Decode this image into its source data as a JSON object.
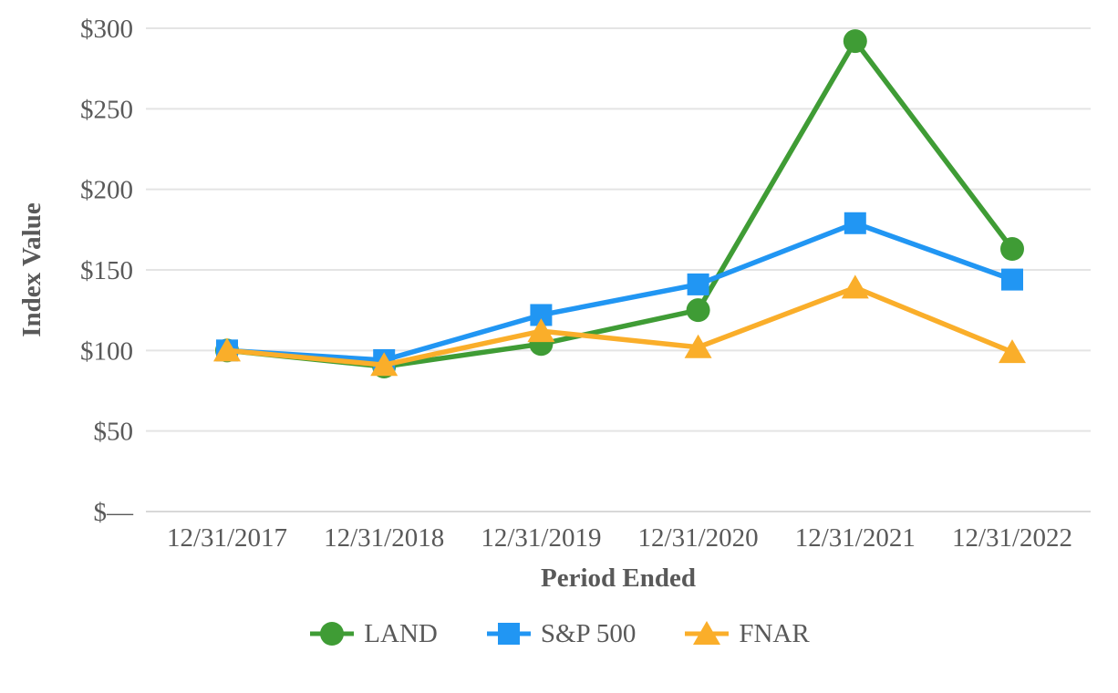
{
  "chart_data": {
    "type": "line",
    "title": "",
    "xlabel": "Period Ended",
    "ylabel": "Index Value",
    "categories": [
      "12/31/2017",
      "12/31/2018",
      "12/31/2019",
      "12/31/2020",
      "12/31/2021",
      "12/31/2022"
    ],
    "series": [
      {
        "name": "LAND",
        "marker": "circle",
        "color": "#3f9c35",
        "values": [
          100,
          90,
          104,
          125,
          292,
          163
        ]
      },
      {
        "name": "S&P 500",
        "marker": "square",
        "color": "#2196f3",
        "values": [
          100,
          94,
          122,
          141,
          179,
          144
        ]
      },
      {
        "name": "FNAR",
        "marker": "triangle",
        "color": "#faae2a",
        "values": [
          100,
          91,
          112,
          102,
          139,
          99
        ]
      }
    ],
    "y_ticks": [
      {
        "value": 0,
        "label": "$—"
      },
      {
        "value": 50,
        "label": "$50"
      },
      {
        "value": 100,
        "label": "$100"
      },
      {
        "value": 150,
        "label": "$150"
      },
      {
        "value": 200,
        "label": "$200"
      },
      {
        "value": 250,
        "label": "$250"
      },
      {
        "value": 300,
        "label": "$300"
      }
    ],
    "ylim": [
      0,
      300
    ],
    "grid": true,
    "legend_position": "bottom"
  },
  "colors": {
    "gridline": "#e4e4e4",
    "baseline": "#d8d8d8",
    "text": "#595959",
    "background": "#ffffff"
  }
}
